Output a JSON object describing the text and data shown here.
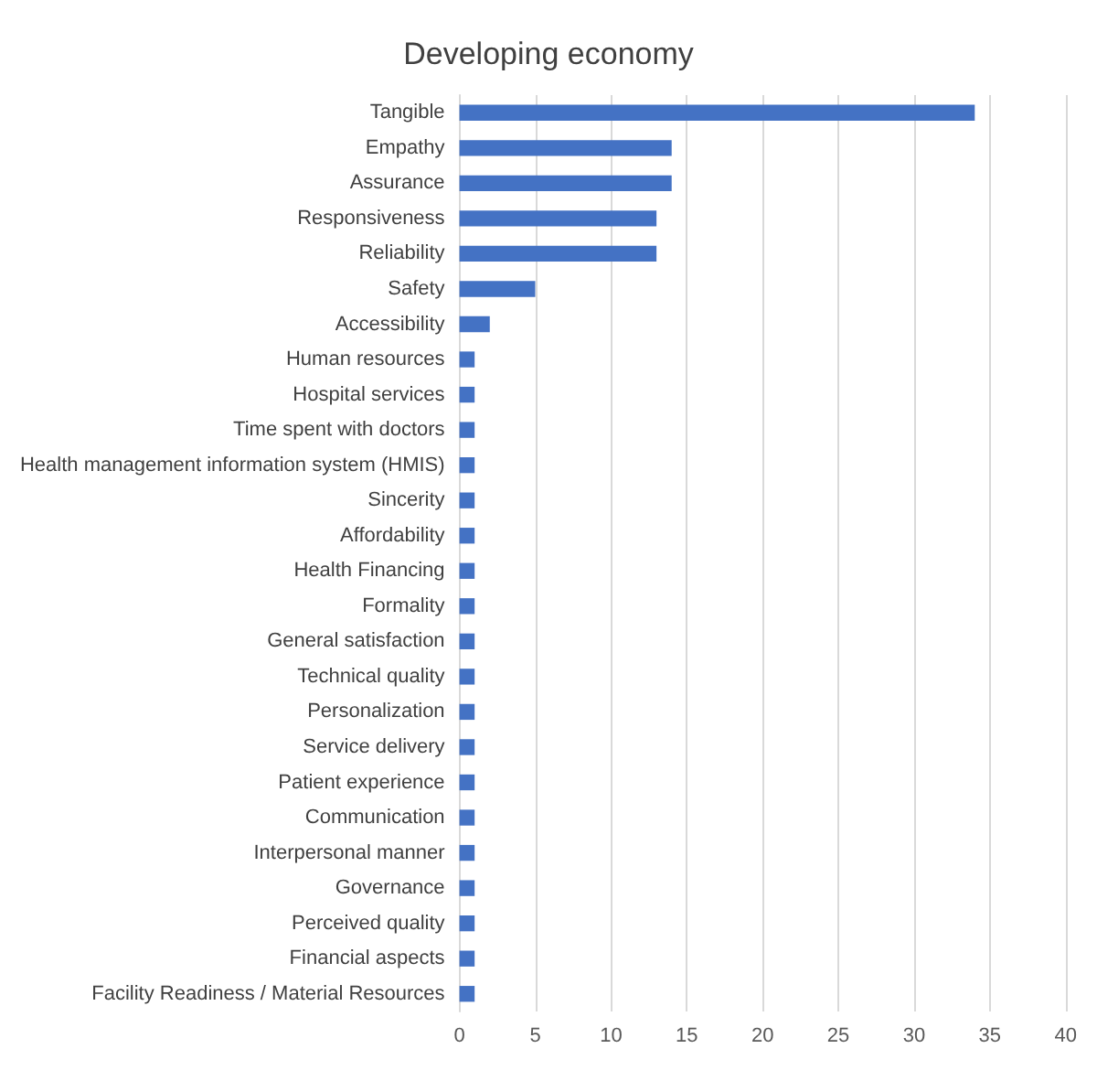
{
  "chart_data": {
    "type": "bar",
    "orientation": "horizontal",
    "title": "Developing economy",
    "categories": [
      "Tangible",
      "Empathy",
      "Assurance",
      "Responsiveness",
      "Reliability",
      "Safety",
      "Accessibility",
      "Human resources",
      "Hospital services",
      "Time spent with doctors",
      "Health management information system (HMIS)",
      "Sincerity",
      "Affordability",
      "Health Financing",
      "Formality",
      "General satisfaction",
      "Technical quality",
      "Personalization",
      "Service delivery",
      "Patient experience",
      "Communication",
      "Interpersonal manner",
      "Governance",
      "Perceived quality",
      "Financial aspects",
      "Facility Readiness / Material Resources"
    ],
    "values": [
      34,
      14,
      14,
      13,
      13,
      5,
      2,
      1,
      1,
      1,
      1,
      1,
      1,
      1,
      1,
      1,
      1,
      1,
      1,
      1,
      1,
      1,
      1,
      1,
      1,
      1
    ],
    "color": "#4472c4",
    "xlim": [
      0,
      40
    ],
    "xticks": [
      0,
      5,
      10,
      15,
      20,
      25,
      30,
      35,
      40
    ],
    "grid": "x"
  }
}
